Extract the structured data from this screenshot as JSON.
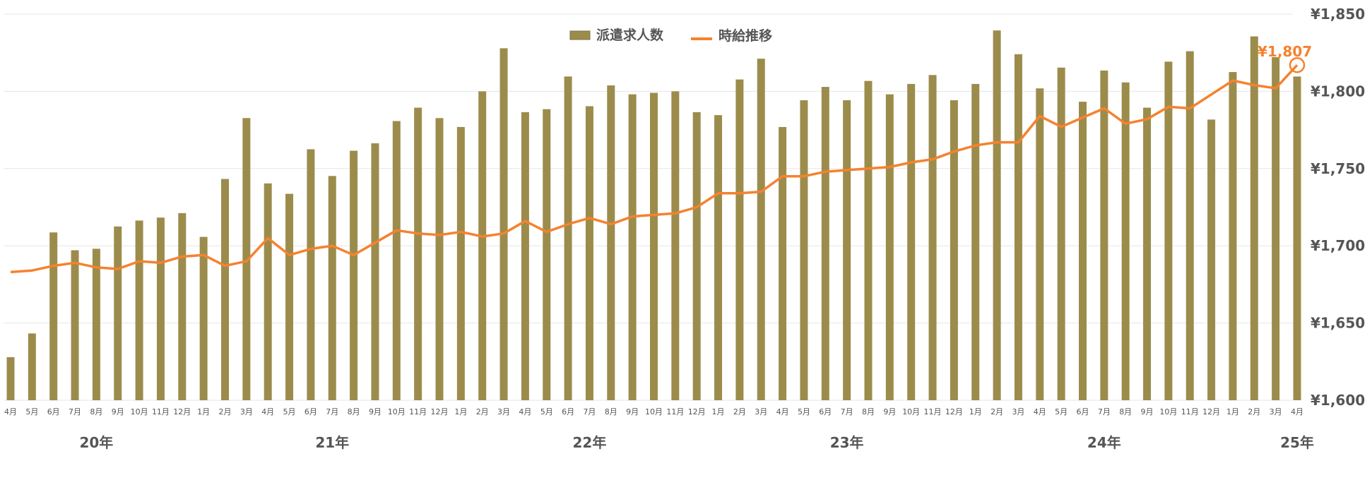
{
  "chart_data": {
    "type": "bar+line",
    "legend": {
      "bar_label": "派遣求人数",
      "line_label": "時給推移",
      "position": "top-center"
    },
    "colors": {
      "bar": "#9C8C4C",
      "line": "#F5822E",
      "grid": "#E6E6E6",
      "text": "#555555"
    },
    "y_right": {
      "min": 1600,
      "max": 1850,
      "step": 50,
      "ticks": [
        "¥1,600",
        "¥1,650",
        "¥1,700",
        "¥1,750",
        "¥1,800",
        "¥1,850"
      ]
    },
    "grid": true,
    "months": [
      "4月",
      "5月",
      "6月",
      "7月",
      "8月",
      "9月",
      "10月",
      "11月",
      "12月",
      "1月",
      "2月",
      "3月",
      "4月",
      "5月",
      "6月",
      "7月",
      "8月",
      "9月",
      "10月",
      "11月",
      "12月",
      "1月",
      "2月",
      "3月",
      "4月",
      "5月",
      "6月",
      "7月",
      "8月",
      "9月",
      "10月",
      "11月",
      "12月",
      "1月",
      "2月",
      "3月",
      "4月",
      "5月",
      "6月",
      "7月",
      "8月",
      "9月",
      "10月",
      "11月",
      "12月",
      "1月",
      "2月",
      "3月",
      "4月",
      "5月",
      "6月",
      "7月",
      "8月",
      "9月",
      "10月",
      "11月",
      "12月",
      "1月",
      "2月",
      "3月",
      "4月"
    ],
    "years": [
      {
        "label": "20年",
        "month_index": 4
      },
      {
        "label": "21年",
        "month_index": 15
      },
      {
        "label": "22年",
        "month_index": 27
      },
      {
        "label": "23年",
        "month_index": 39
      },
      {
        "label": "24年",
        "month_index": 51
      },
      {
        "label": "25年",
        "month_index": 60
      }
    ],
    "bar_values": [
      29,
      45,
      113,
      101,
      102,
      117,
      121,
      123,
      126,
      110,
      149,
      190,
      146,
      139,
      169,
      151,
      168,
      173,
      188,
      197,
      190,
      184,
      208,
      237,
      194,
      196,
      218,
      198,
      212,
      206,
      207,
      208,
      194,
      192,
      216,
      230,
      184,
      202,
      211,
      202,
      215,
      206,
      213,
      219,
      202,
      213,
      249,
      233,
      210,
      224,
      201,
      222,
      214,
      197,
      228,
      235,
      189,
      221,
      245,
      231,
      218
    ],
    "line_values": [
      1683,
      1684,
      1687,
      1689,
      1686,
      1685,
      1690,
      1689,
      1693,
      1694,
      1687,
      1690,
      1705,
      1694,
      1698,
      1700,
      1694,
      1702,
      1710,
      1708,
      1707,
      1709,
      1706,
      1708,
      1716,
      1709,
      1714,
      1718,
      1714,
      1719,
      1720,
      1721,
      1725,
      1734,
      1734,
      1735,
      1745,
      1745,
      1748,
      1749,
      1750,
      1751,
      1754,
      1756,
      1761,
      1765,
      1767,
      1767,
      1784,
      1777,
      1783,
      1789,
      1779,
      1782,
      1790,
      1789,
      1798,
      1807,
      1804,
      1802,
      1817
    ],
    "annotation": {
      "text": "¥1,807"
    }
  }
}
